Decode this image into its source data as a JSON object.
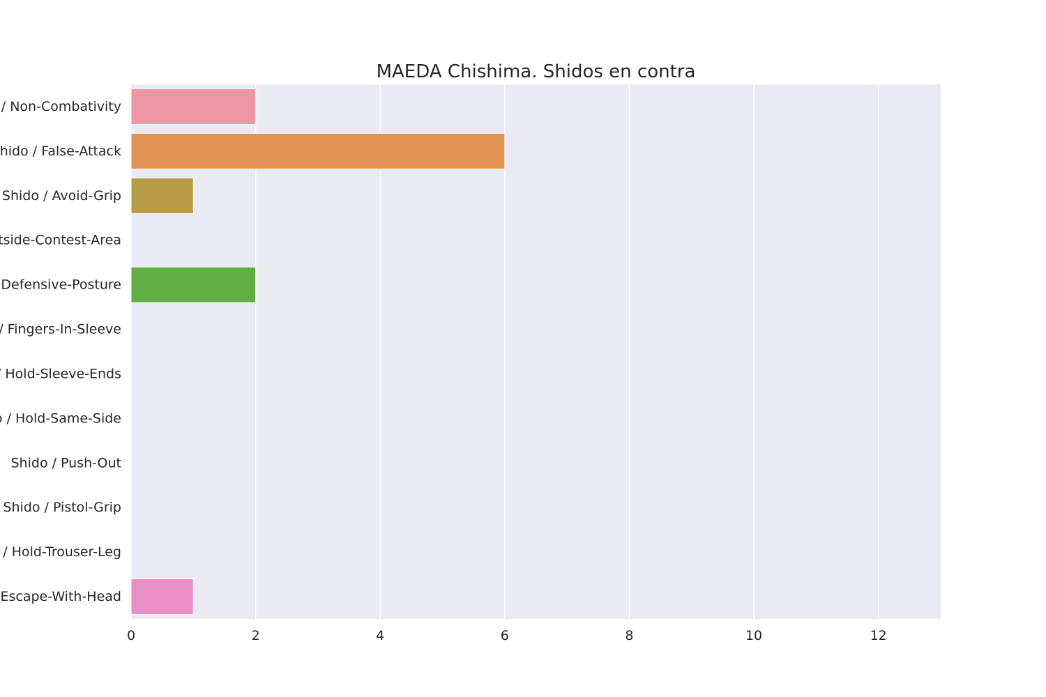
{
  "chart_data": {
    "type": "bar",
    "orientation": "horizontal",
    "title": "MAEDA Chishima. Shidos en contra",
    "xlabel": "",
    "ylabel": "",
    "xlim": [
      0,
      13
    ],
    "x_ticks": [
      0,
      2,
      4,
      6,
      8,
      10,
      12
    ],
    "grid": true,
    "categories": [
      "Shido / Non-Combativity",
      "Shido / False-Attack",
      "Shido / Avoid-Grip",
      "Shido / Outside-Contest-Area",
      "Shido / Defensive-Posture",
      "Shido / Fingers-In-Sleeve",
      "Shido / Hold-Sleeve-Ends",
      "Shido / Hold-Same-Side",
      "Shido / Push-Out",
      "Shido / Pistol-Grip",
      "Shido / Hold-Trouser-Leg",
      "Shido / Escape-With-Head"
    ],
    "values": [
      2,
      6,
      1,
      0,
      2,
      0,
      0,
      0,
      0,
      0,
      0,
      1
    ],
    "colors": [
      "#eb97a4",
      "#e19254",
      "#b89c48",
      "#8aa948",
      "#61ae47",
      "#49ae8c",
      "#4baea0",
      "#4fabb8",
      "#5da8db",
      "#a89be6",
      "#d88be0",
      "#e890c6"
    ],
    "plot_background": "#eaeaf2",
    "grid_color": "#ffffff"
  }
}
